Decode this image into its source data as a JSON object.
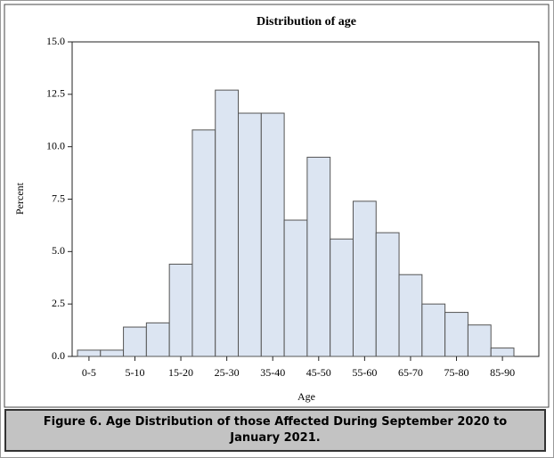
{
  "chart_data": {
    "type": "bar",
    "title": "Distribution of age",
    "x_label": "Age",
    "y_label": "Percent",
    "categories": [
      "0-5",
      null,
      "5-10",
      null,
      "15-20",
      null,
      "25-30",
      null,
      "35-40",
      null,
      "45-50",
      null,
      "55-60",
      null,
      "65-70",
      null,
      "75-80",
      null,
      "85-90"
    ],
    "values": [
      0.3,
      0.3,
      1.4,
      1.6,
      4.4,
      10.8,
      12.7,
      11.6,
      11.6,
      6.5,
      9.5,
      5.6,
      7.4,
      5.9,
      3.9,
      2.5,
      2.1,
      1.5,
      0.4
    ],
    "color": "#dce5f2",
    "ylim": [
      0,
      15
    ],
    "yticks": [
      {
        "value": 0,
        "label": "0.0"
      },
      {
        "value": 2.5,
        "label": "2.5"
      },
      {
        "value": 5,
        "label": "5.0"
      },
      {
        "value": 7.5,
        "label": "7.5"
      },
      {
        "value": 10,
        "label": "10.0"
      },
      {
        "value": 12.5,
        "label": "12.5"
      },
      {
        "value": 15,
        "label": "15.0"
      }
    ],
    "grid": false
  },
  "caption": "Figure 6. Age Distribution of those Affected During September 2020 to January 2021."
}
